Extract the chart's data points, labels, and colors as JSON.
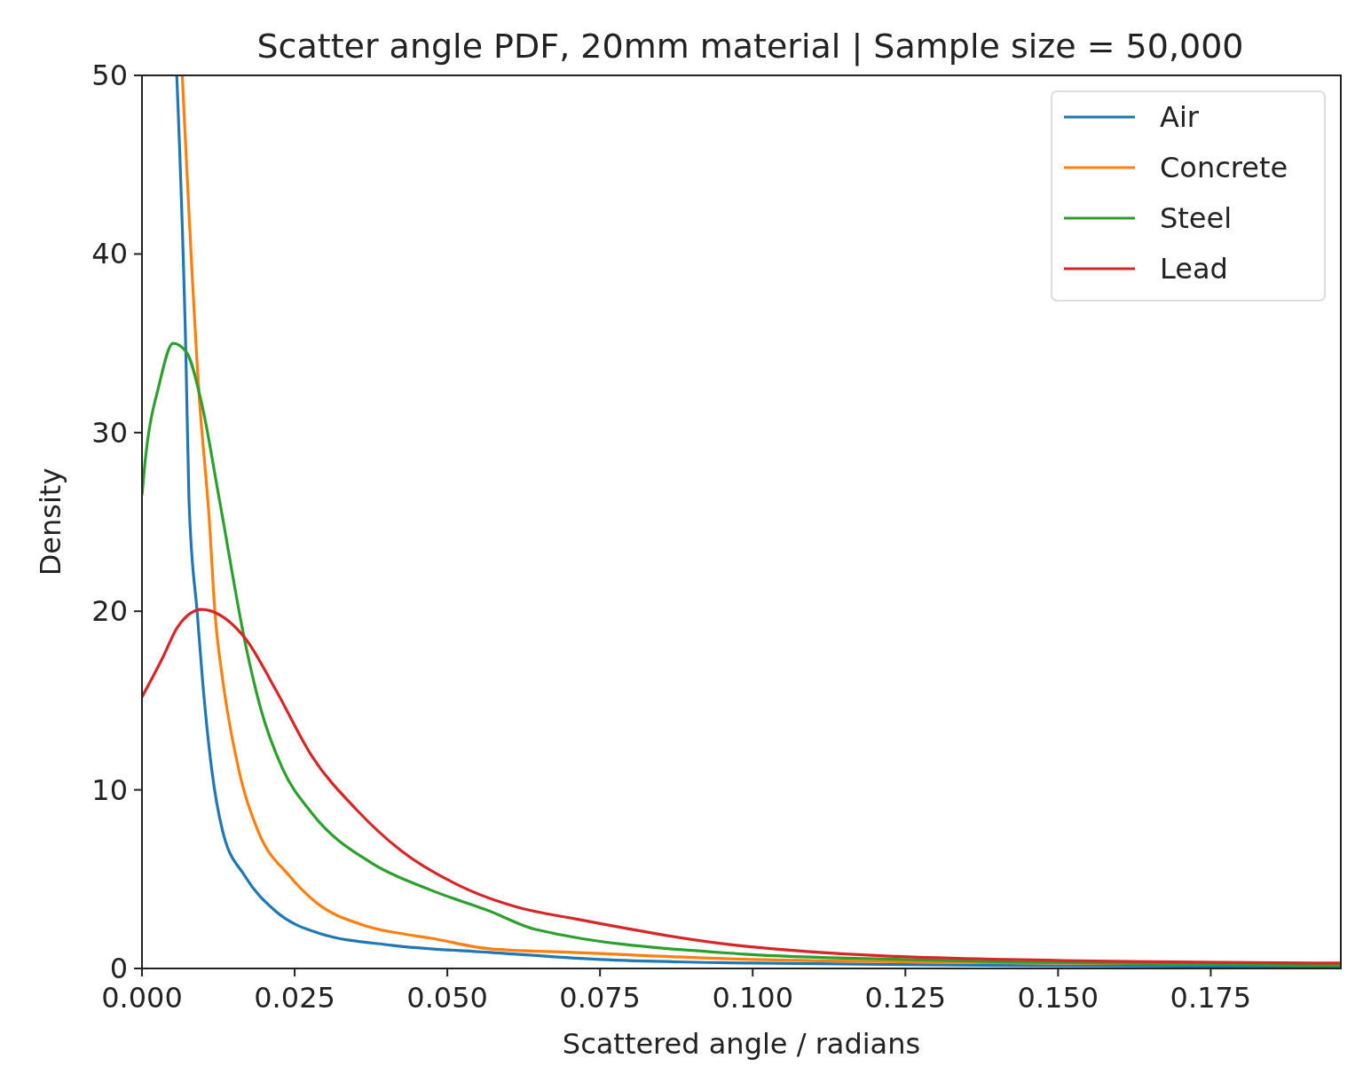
{
  "chart_data": {
    "type": "line",
    "title": "Scatter angle PDF, 20mm material | Sample size = 50,000",
    "xlabel": "Scattered angle / radians",
    "ylabel": "Density",
    "xlim": [
      0,
      0.1963
    ],
    "ylim": [
      0,
      50
    ],
    "xticks": [
      {
        "value": 0,
        "label": "0.000"
      },
      {
        "value": 0.025,
        "label": "0.025"
      },
      {
        "value": 0.05,
        "label": "0.050"
      },
      {
        "value": 0.075,
        "label": "0.075"
      },
      {
        "value": 0.1,
        "label": "0.100"
      },
      {
        "value": 0.125,
        "label": "0.125"
      },
      {
        "value": 0.15,
        "label": "0.150"
      },
      {
        "value": 0.175,
        "label": "0.175"
      }
    ],
    "yticks": [
      0,
      10,
      20,
      30,
      40,
      50
    ],
    "legend": "top right",
    "grid": false,
    "series": [
      {
        "name": "Air",
        "color": "#1f77b4",
        "x": [
          0.0057,
          0.0072,
          0.0077,
          0.0091,
          0.0099,
          0.0114,
          0.0132,
          0.0168,
          0.0219,
          0.0292,
          0.0409,
          0.057,
          0.075,
          0.1,
          0.15,
          0.1963
        ],
        "values": [
          50,
          34.2,
          26.2,
          19.7,
          16.2,
          11.2,
          7.7,
          5.2,
          3.2,
          1.95,
          1.3,
          0.9,
          0.5,
          0.3,
          0.15,
          0.1
        ]
      },
      {
        "name": "Concrete",
        "color": "#ff7f0e",
        "x": [
          0.0066,
          0.0094,
          0.011,
          0.012,
          0.0132,
          0.0158,
          0.019,
          0.0241,
          0.0285,
          0.0365,
          0.0434,
          0.0472,
          0.057,
          0.0706,
          0.1,
          0.15,
          0.1963
        ],
        "values": [
          50,
          31.9,
          25.2,
          19.7,
          16.2,
          11.2,
          7.7,
          5.2,
          3.7,
          2.4,
          1.9,
          1.7,
          1.1,
          0.9,
          0.5,
          0.3,
          0.2
        ]
      },
      {
        "name": "Steel",
        "color": "#2ca02c",
        "x": [
          0,
          0.0004,
          0.0029,
          0.0051,
          0.0073,
          0.0098,
          0.0127,
          0.0171,
          0.0194,
          0.023,
          0.0278,
          0.0376,
          0.0472,
          0.057,
          0.0643,
          0.0987,
          0.125,
          0.1417,
          0.1963
        ],
        "values": [
          26.5,
          28,
          32.8,
          35,
          34.5,
          31.6,
          26.2,
          17.9,
          14.6,
          11.2,
          8.7,
          5.9,
          4.4,
          3.2,
          2.2,
          0.8,
          0.5,
          0.37,
          0.15
        ]
      },
      {
        "name": "Lead",
        "color": "#d62728",
        "x": [
          0,
          0.0034,
          0.0058,
          0.0098,
          0.0127,
          0.0171,
          0.0219,
          0.0278,
          0.0351,
          0.0424,
          0.0522,
          0.0618,
          0.0706,
          0.0987,
          0.1417,
          0.1963
        ],
        "values": [
          15.2,
          17.4,
          19.1,
          20.1,
          19.8,
          18.4,
          15.6,
          11.9,
          8.9,
          6.6,
          4.6,
          3.4,
          2.8,
          1.25,
          0.5,
          0.3
        ]
      }
    ]
  }
}
